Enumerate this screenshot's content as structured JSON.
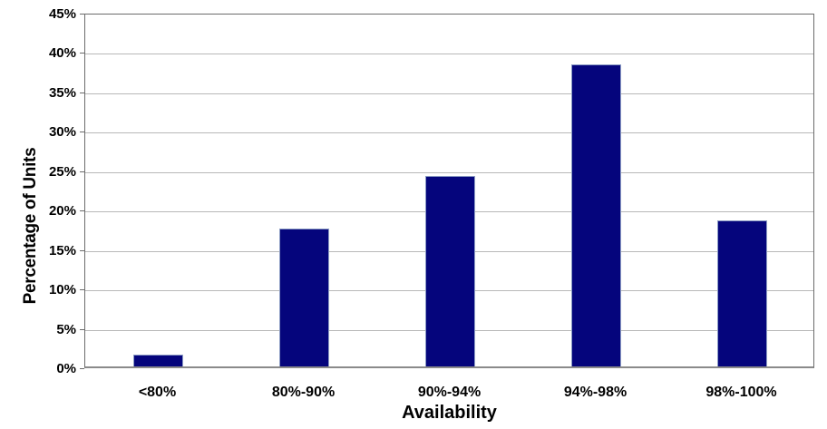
{
  "chart_data": {
    "type": "bar",
    "title": "",
    "xlabel": "Availability",
    "ylabel": "Percentage of Units",
    "categories": [
      "<80%",
      "80%-90%",
      "90%-94%",
      "94%-98%",
      "98%-100%"
    ],
    "values": [
      1.5,
      17.5,
      24.2,
      38.3,
      18.5
    ],
    "ylim": [
      0,
      45
    ],
    "ytick_labels": [
      "0%",
      "5%",
      "10%",
      "15%",
      "20%",
      "25%",
      "30%",
      "35%",
      "40%",
      "45%"
    ],
    "grid": "horizontal",
    "legend": "none",
    "colors": {
      "bar_fill": "#05057c",
      "bar_border": "#8c9cc4",
      "gridline": "#b8b8b8",
      "axis_line": "#6b6b6b",
      "text": "#000000",
      "background": "#ffffff"
    }
  }
}
